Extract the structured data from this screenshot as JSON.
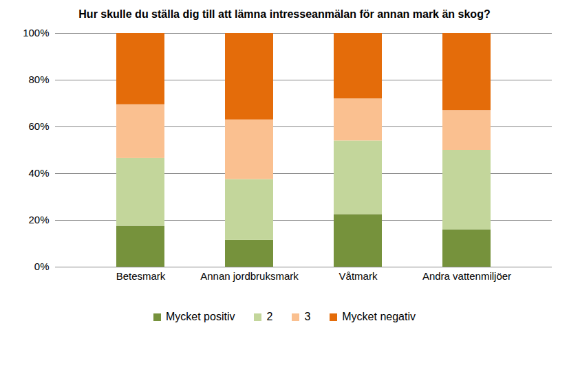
{
  "chart_data": {
    "type": "bar",
    "title": "Hur skulle du ställa dig till att lämna intresseanmälan för annan mark än skog?",
    "categories": [
      "Betesmark",
      "Annan jordbruksmark",
      "Våtmark",
      "Andra vattenmiljöer"
    ],
    "series": [
      {
        "name": "Mycket positiv",
        "color": "#76923c",
        "values": [
          17.5,
          11.5,
          22.5,
          16
        ]
      },
      {
        "name": "2",
        "color": "#c3d69b",
        "values": [
          29,
          26,
          31.5,
          34
        ]
      },
      {
        "name": "3",
        "color": "#fac090",
        "values": [
          23,
          25.5,
          18,
          17
        ]
      },
      {
        "name": "Mycket negativ",
        "color": "#e46c0a",
        "values": [
          30.5,
          37,
          28,
          33
        ]
      }
    ],
    "stacked": true,
    "ylim": [
      0,
      100
    ],
    "yticks": [
      {
        "value": 0,
        "label": "0%"
      },
      {
        "value": 20,
        "label": "20%"
      },
      {
        "value": 40,
        "label": "40%"
      },
      {
        "value": 60,
        "label": "60%"
      },
      {
        "value": 80,
        "label": "80%"
      },
      {
        "value": 100,
        "label": "100%"
      }
    ],
    "grid": true,
    "legend": "bottom"
  }
}
